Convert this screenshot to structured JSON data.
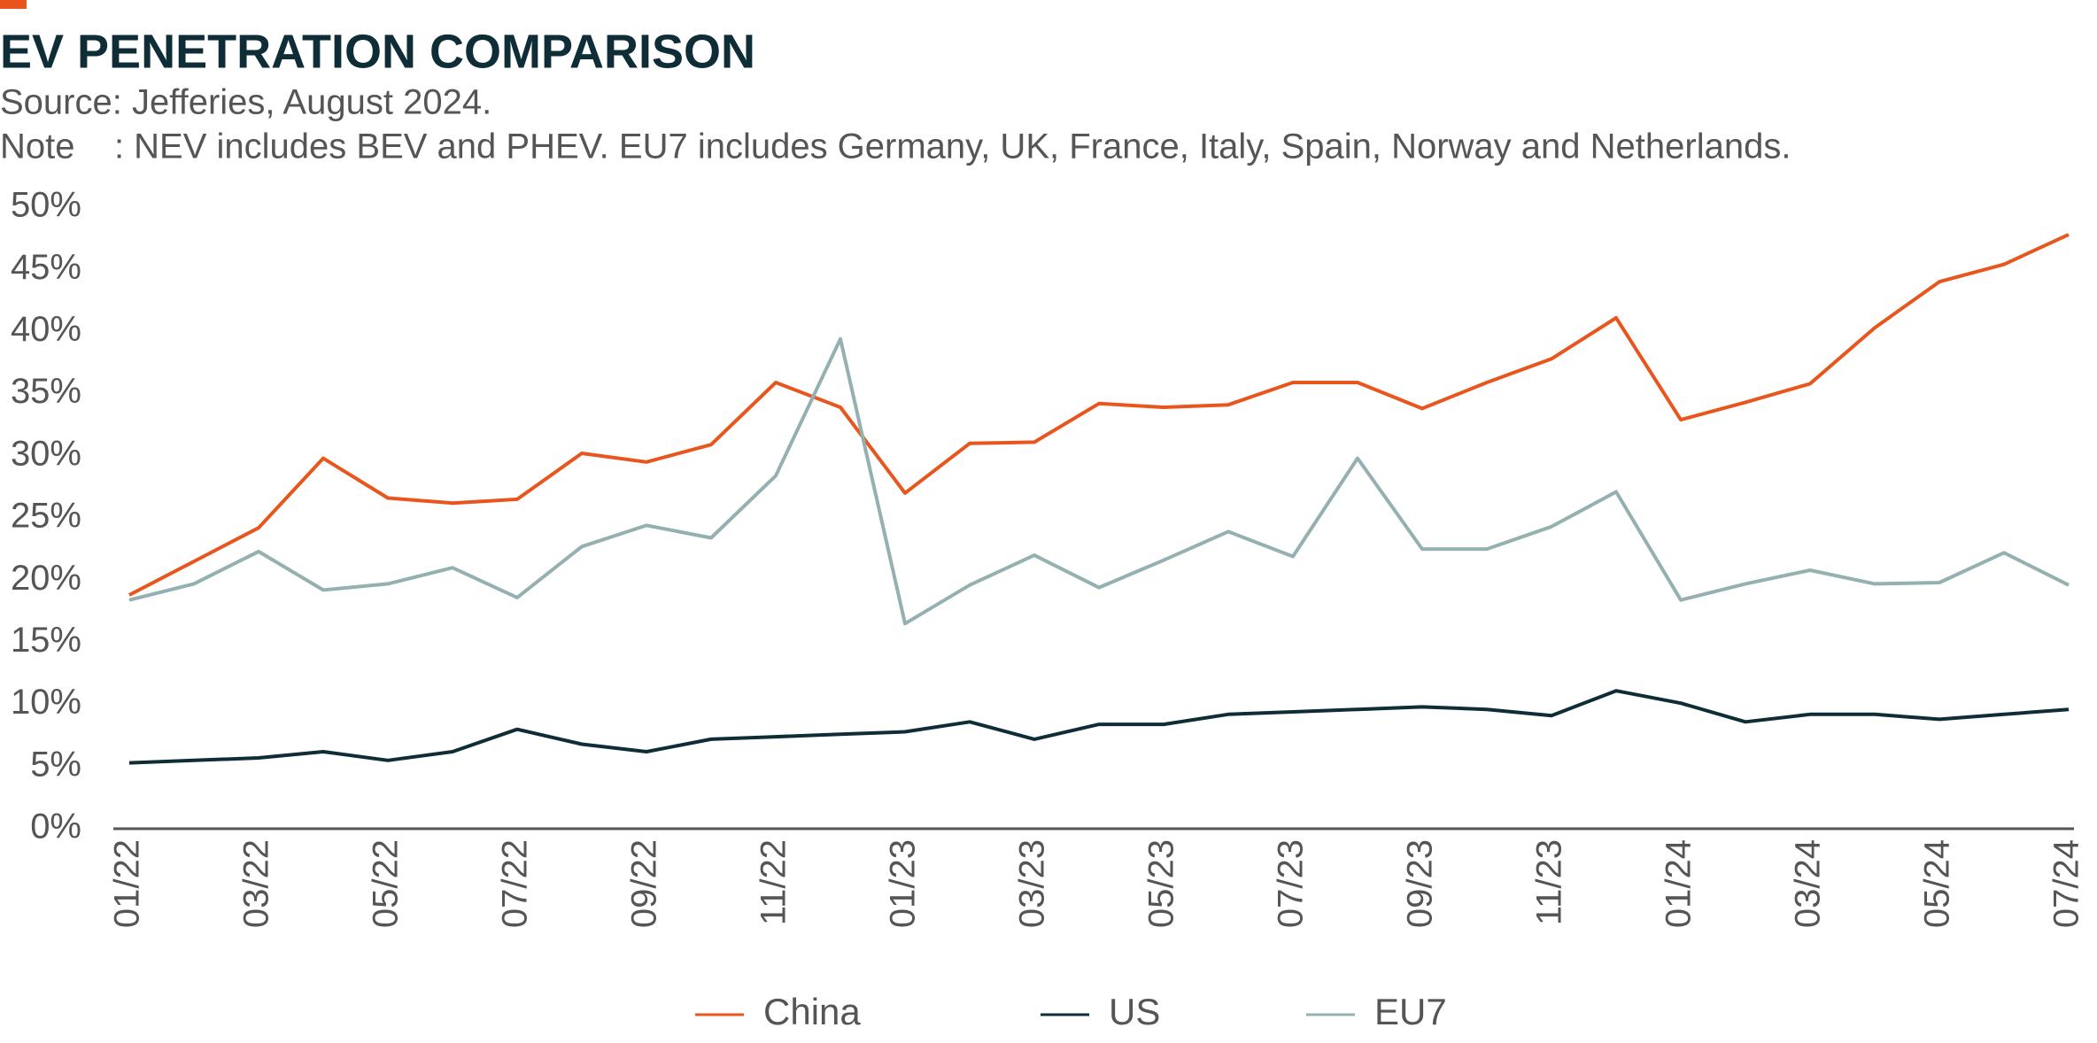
{
  "chart_data": {
    "type": "line",
    "title": "EV PENETRATION COMPARISON",
    "subtitle": "Source: Jefferies, August 2024.",
    "note": "Note    : NEV includes BEV and PHEV. EU7 includes Germany, UK, France, Italy, Spain, Norway and Netherlands.",
    "categories": [
      "01/22",
      null,
      "03/22",
      null,
      "05/22",
      null,
      "07/22",
      null,
      "09/22",
      null,
      "11/22",
      null,
      "01/23",
      null,
      "03/23",
      null,
      "05/23",
      null,
      "07/23",
      null,
      "09/23",
      null,
      "11/23",
      null,
      "01/24",
      null,
      "03/24",
      null,
      "05/24",
      null,
      "07/24"
    ],
    "series": [
      {
        "name": "China",
        "color": "#e8561e",
        "values": [
          18.8,
          21.5,
          24.2,
          29.8,
          26.6,
          26.2,
          26.5,
          30.2,
          29.5,
          30.9,
          35.9,
          33.9,
          27.0,
          31.0,
          31.1,
          34.2,
          33.9,
          34.1,
          35.9,
          35.9,
          33.8,
          35.9,
          37.8,
          41.1,
          32.9,
          34.3,
          35.8,
          40.3,
          44.0,
          45.4,
          47.8
        ]
      },
      {
        "name": "US",
        "color": "#0f2d36",
        "values": [
          5.3,
          5.5,
          5.7,
          6.2,
          5.5,
          6.2,
          8.0,
          6.8,
          6.2,
          7.2,
          7.4,
          7.6,
          7.8,
          8.6,
          7.2,
          8.4,
          8.4,
          9.2,
          9.4,
          9.6,
          9.8,
          9.6,
          9.1,
          11.1,
          10.1,
          8.6,
          9.2,
          9.2,
          8.8,
          9.2,
          9.6
        ]
      },
      {
        "name": "EU7",
        "color": "#94b0b0",
        "values": [
          18.4,
          19.7,
          22.3,
          19.2,
          19.7,
          21.0,
          18.6,
          22.7,
          24.4,
          23.4,
          28.4,
          39.4,
          16.5,
          19.6,
          22.0,
          19.4,
          21.6,
          23.9,
          21.9,
          29.8,
          22.5,
          22.5,
          24.3,
          27.1,
          18.4,
          19.7,
          20.8,
          19.7,
          19.8,
          22.2,
          19.6
        ]
      }
    ],
    "ylim": [
      0,
      50
    ],
    "yticks": [
      {
        "value": 0,
        "label": "0%"
      },
      {
        "value": 5,
        "label": "5%"
      },
      {
        "value": 10,
        "label": "10%"
      },
      {
        "value": 15,
        "label": "15%"
      },
      {
        "value": 20,
        "label": "20%"
      },
      {
        "value": 25,
        "label": "25%"
      },
      {
        "value": 30,
        "label": "30%"
      },
      {
        "value": 35,
        "label": "35%"
      },
      {
        "value": 40,
        "label": "40%"
      },
      {
        "value": 45,
        "label": "45%"
      },
      {
        "value": 50,
        "label": "50%"
      }
    ],
    "grid": false,
    "legend": "bottom"
  }
}
